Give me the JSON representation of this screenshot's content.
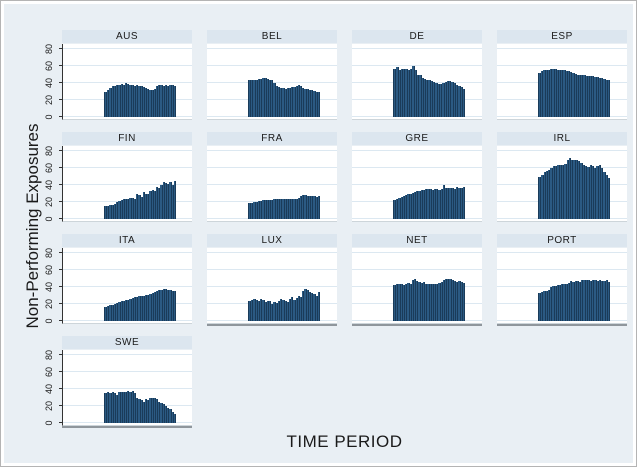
{
  "figure": {
    "ylabel": "Non-Performing Exposures",
    "xlabel": "TIME PERIOD"
  },
  "colors": {
    "canvas_bg": "#e9eff4",
    "panel_title_bg": "#dce6ef",
    "plot_bg": "#ffffff",
    "gridline": "#dce8f1",
    "bar_fill": "#2b5a83",
    "bar_edge": "#1a3b59",
    "axis_line": "#333333",
    "bottom_axis_line": "#8f969c",
    "text": "#1a1a1a"
  },
  "chart_data": {
    "type": "bar",
    "title": "",
    "ylabel": "Non-Performing Exposures",
    "xlabel": "TIME PERIOD",
    "yticks": [
      0,
      20,
      40,
      60,
      80
    ],
    "ylim": [
      0,
      88
    ],
    "grid": true,
    "legend_position": "none",
    "layout": "small-multiples, 4 columns, y labels on left column only, x axis line on bottom panel of each column",
    "panels": [
      {
        "title": "AUS",
        "values": [
          30,
          32,
          34,
          36,
          37,
          38,
          38,
          39,
          38,
          40,
          39,
          38,
          38,
          37,
          38,
          37,
          36,
          35,
          34,
          33,
          32,
          32,
          33,
          36,
          38,
          38,
          37,
          38,
          36,
          38,
          38,
          37
        ]
      },
      {
        "title": "BEL",
        "values": [
          43,
          43,
          44,
          44,
          45,
          45,
          46,
          46,
          45,
          44,
          43,
          40,
          36,
          35,
          34,
          34,
          33,
          34,
          34,
          35,
          35,
          36,
          38,
          36,
          34,
          33,
          33,
          32,
          32,
          31,
          30,
          30
        ]
      },
      {
        "title": "DE",
        "values": [
          57,
          59,
          55,
          56,
          57,
          56,
          55,
          57,
          60,
          55,
          49,
          50,
          46,
          45,
          44,
          43,
          42,
          41,
          40,
          39,
          39,
          40,
          41,
          42,
          42,
          41,
          40,
          38,
          36,
          35,
          33
        ]
      },
      {
        "title": "ESP",
        "values": [
          52,
          54,
          55,
          55,
          55,
          56,
          56,
          56,
          55,
          55,
          55,
          55,
          54,
          54,
          53,
          52,
          51,
          50,
          50,
          49,
          49,
          48,
          48,
          48,
          48,
          47,
          47,
          46,
          46,
          45,
          44,
          44
        ]
      },
      {
        "title": "FIN",
        "values": [
          15,
          15,
          16,
          17,
          18,
          20,
          21,
          22,
          23,
          24,
          24,
          25,
          25,
          24,
          30,
          28,
          26,
          32,
          30,
          30,
          33,
          34,
          33,
          38,
          36,
          40,
          44,
          42,
          41,
          43,
          40,
          45
        ]
      },
      {
        "title": "FRA",
        "values": [
          19,
          19,
          20,
          20,
          21,
          21,
          22,
          22,
          22,
          22,
          22,
          23,
          23,
          23,
          23,
          23,
          23,
          24,
          24,
          24,
          24,
          24,
          25,
          27,
          28,
          28,
          27,
          27,
          27,
          27,
          26,
          27
        ]
      },
      {
        "title": "GRE",
        "values": [
          22,
          23,
          25,
          26,
          27,
          28,
          29,
          30,
          31,
          32,
          33,
          33,
          34,
          34,
          35,
          35,
          35,
          34,
          35,
          35,
          34,
          35,
          40,
          37,
          37,
          36,
          36,
          35,
          38,
          37,
          37,
          38
        ]
      },
      {
        "title": "IRL",
        "values": [
          50,
          52,
          55,
          57,
          58,
          60,
          62,
          62,
          63,
          64,
          63,
          65,
          70,
          72,
          70,
          70,
          69,
          68,
          66,
          63,
          62,
          61,
          63,
          62,
          60,
          62,
          63,
          60,
          55,
          52,
          48
        ]
      },
      {
        "title": "ITA",
        "values": [
          17,
          18,
          19,
          19,
          20,
          21,
          22,
          23,
          24,
          25,
          25,
          26,
          27,
          28,
          28,
          29,
          30,
          30,
          31,
          31,
          32,
          33,
          34,
          35,
          36,
          37,
          38,
          38,
          37,
          36,
          35,
          35
        ]
      },
      {
        "title": "LUX",
        "values": [
          24,
          25,
          26,
          25,
          24,
          26,
          25,
          22,
          24,
          23,
          20,
          22,
          21,
          24,
          26,
          25,
          23,
          22,
          26,
          28,
          25,
          27,
          30,
          28,
          35,
          38,
          36,
          34,
          33,
          32,
          30,
          34
        ]
      },
      {
        "title": "NET",
        "values": [
          42,
          43,
          44,
          43,
          42,
          44,
          45,
          43,
          48,
          50,
          47,
          46,
          45,
          46,
          44,
          44,
          43,
          43,
          44,
          44,
          45,
          46,
          48,
          49,
          49,
          49,
          48,
          47,
          46,
          47,
          46,
          45
        ]
      },
      {
        "title": "PORT",
        "values": [
          33,
          34,
          35,
          35,
          36,
          40,
          41,
          41,
          42,
          42,
          43,
          44,
          44,
          45,
          47,
          46,
          47,
          47,
          46,
          48,
          48,
          48,
          48,
          47,
          48,
          48,
          47,
          48,
          47,
          47,
          48,
          46
        ]
      },
      {
        "title": "SWE",
        "values": [
          35,
          36,
          35,
          36,
          35,
          33,
          36,
          37,
          36,
          37,
          38,
          36,
          38,
          35,
          30,
          28,
          27,
          25,
          28,
          27,
          30,
          30,
          29,
          28,
          25,
          24,
          22,
          20,
          18,
          16,
          13,
          11
        ]
      }
    ]
  }
}
